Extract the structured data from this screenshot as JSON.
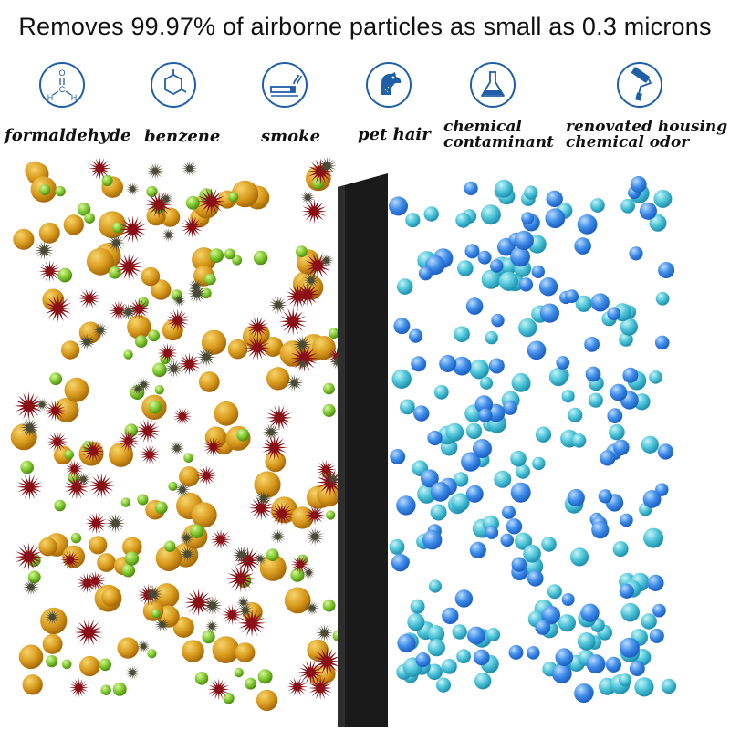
{
  "headline": "Removes 99.97% of airborne particles as small as 0.3 microns",
  "icons": [
    {
      "icon": "formaldehyde-molecule-icon",
      "label": "formaldehyde"
    },
    {
      "icon": "benzene-ring-icon",
      "label": "benzene"
    },
    {
      "icon": "smoke-icon",
      "label": "smoke"
    },
    {
      "icon": "dog-icon",
      "label": "pet hair"
    },
    {
      "icon": "flask-icon",
      "label_line1": "chemical",
      "label_line2": "contaminant"
    },
    {
      "icon": "paint-roller-icon",
      "label_line1": "renovated housing",
      "label_line2": "chemical odor"
    }
  ],
  "molecule_atoms": {
    "oxygen": "O",
    "carbon": "C",
    "hydrogen_left": "H",
    "hydrogen_right": "H"
  },
  "colors": {
    "icon_stroke": "#1f5fa8",
    "filter": "#1a1a1a",
    "dirty_orange": "#d89a1c",
    "dirty_green": "#7cc62b",
    "dirty_red": "#8a0f16",
    "dirty_gray": "#4a4a36",
    "clean_blue": "#3d8be8",
    "clean_cyan": "#4cc4d8"
  }
}
